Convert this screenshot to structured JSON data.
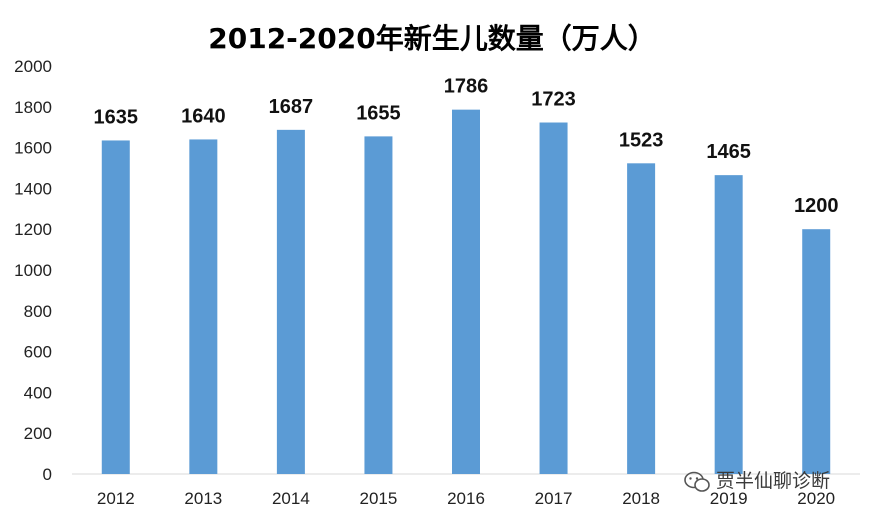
{
  "chart_data": {
    "type": "bar",
    "title": "2012-2020年新生儿数量（万人）",
    "categories": [
      "2012",
      "2013",
      "2014",
      "2015",
      "2016",
      "2017",
      "2018",
      "2019",
      "2020"
    ],
    "values": [
      1635,
      1640,
      1687,
      1655,
      1786,
      1723,
      1523,
      1465,
      1200
    ],
    "ylim": [
      0,
      2000
    ],
    "yticks": [
      0,
      200,
      400,
      600,
      800,
      1000,
      1200,
      1400,
      1600,
      1800,
      2000
    ],
    "xlabel": "",
    "ylabel": "",
    "grid": false,
    "bar_color": "#5B9BD5",
    "data_labels": true
  },
  "watermark": {
    "text": "贾半仙聊诊断",
    "icon": "wechat-icon"
  }
}
